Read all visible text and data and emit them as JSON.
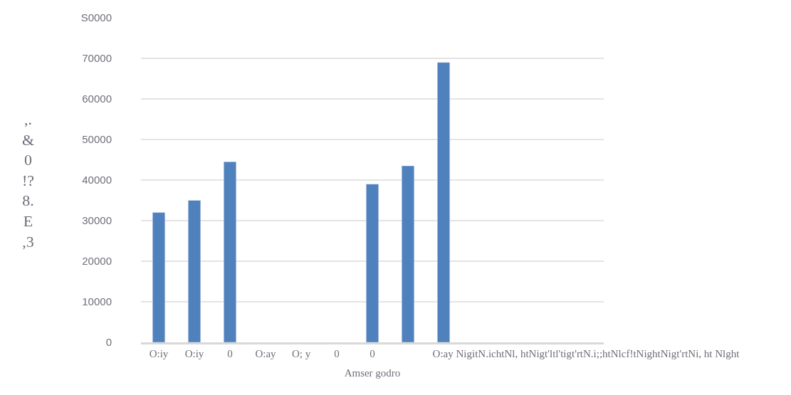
{
  "chart_data": {
    "type": "bar",
    "xlabel": "Amser godro",
    "ylabel": ",. & 0 !? 8. E ,3",
    "categories": [
      "O:iy",
      "O:iy",
      "0",
      "O:ay",
      "O; y",
      "0",
      "0",
      null,
      null,
      null,
      null,
      null,
      "O:ay NigitN.ichtNl, htNigt'ltl'tigt'rtN.i;;htNlcf!tNightNigt'rtNi, ht Nlght"
    ],
    "values": [
      32000,
      35000,
      44500,
      null,
      null,
      null,
      39000,
      43500,
      69000,
      null,
      null,
      null,
      null
    ],
    "color": "#4f81bd",
    "ylim": [
      0,
      80000
    ],
    "yticks": [
      0,
      10000,
      20000,
      30000,
      40000,
      50000,
      60000,
      70000,
      {
        "value": 80000,
        "label": "S0000"
      }
    ],
    "grid": "y",
    "legend": false
  }
}
